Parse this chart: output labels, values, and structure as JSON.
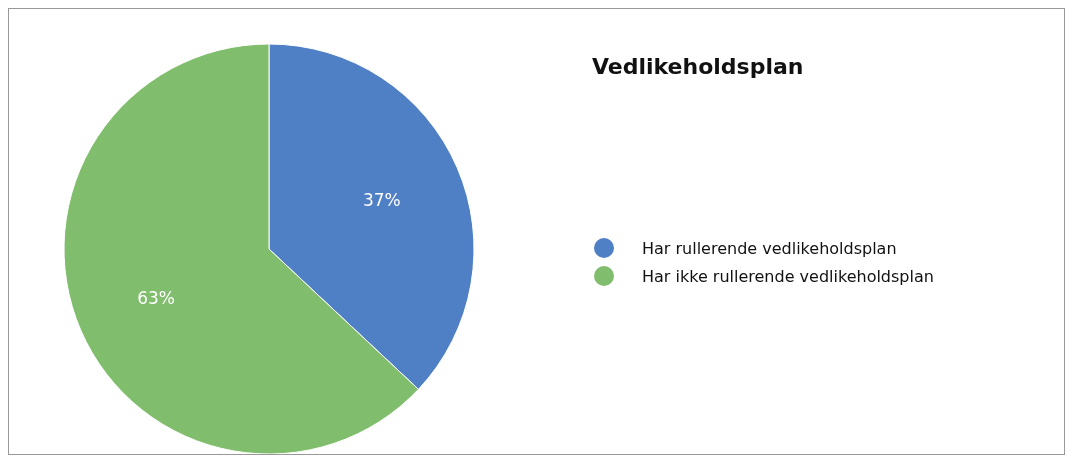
{
  "chart_data": {
    "type": "pie",
    "title": "Vedlikeholdsplan",
    "categories": [
      "Har rullerende vedlikeholdsplan",
      "Har ikke rullerende vedlikeholdsplan"
    ],
    "values": [
      37,
      63
    ],
    "colors": [
      "#4f7fc4",
      "#80bd6c"
    ],
    "value_labels": [
      "37%",
      "63%"
    ],
    "legend": "right"
  }
}
